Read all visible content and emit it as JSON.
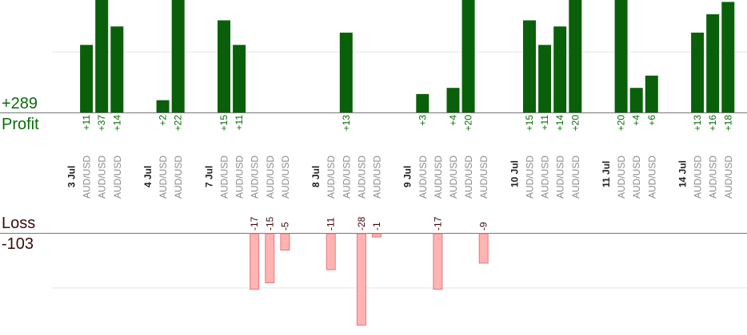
{
  "summary": {
    "profit_total": "+289",
    "profit_label": "Profit",
    "loss_label": "Loss",
    "loss_total": "-103"
  },
  "colors": {
    "profit_bar": "#0a600a",
    "profit_text": "#0a6b0a",
    "loss_bar": "#ffb3b3",
    "loss_border": "#e07a7a",
    "loss_text": "#3a0a0a",
    "category_text": "#8a8a8a",
    "date_text": "#222222",
    "axis": "#777777",
    "grid": "#e6e6e6"
  },
  "chart_data": {
    "type": "bar",
    "title": "",
    "grid": true,
    "profit_ylim": [
      0,
      30
    ],
    "loss_ylim": [
      0,
      28
    ],
    "columns": [
      {
        "label": "3 Jul",
        "date": true
      },
      {
        "label": "AUD/USD",
        "profit": 11
      },
      {
        "label": "AUD/USD",
        "profit": 37
      },
      {
        "label": "AUD/USD",
        "profit": 14
      },
      {
        "label": "",
        "spacer": true
      },
      {
        "label": "4 Jul",
        "date": true
      },
      {
        "label": "AUD/USD",
        "profit": 2
      },
      {
        "label": "AUD/USD",
        "profit": 22
      },
      {
        "label": "",
        "spacer": true
      },
      {
        "label": "7 Jul",
        "date": true
      },
      {
        "label": "AUD/USD",
        "profit": 15
      },
      {
        "label": "AUD/USD",
        "profit": 11
      },
      {
        "label": "AUD/USD",
        "loss": 17
      },
      {
        "label": "AUD/USD",
        "loss": 15
      },
      {
        "label": "AUD/USD",
        "loss": 5
      },
      {
        "label": "",
        "spacer": true
      },
      {
        "label": "8 Jul",
        "date": true
      },
      {
        "label": "AUD/USD",
        "loss": 11
      },
      {
        "label": "AUD/USD",
        "profit": 13
      },
      {
        "label": "AUD/USD",
        "loss": 28
      },
      {
        "label": "AUD/USD",
        "loss": 1
      },
      {
        "label": "",
        "spacer": true
      },
      {
        "label": "9 Jul",
        "date": true
      },
      {
        "label": "AUD/USD",
        "profit": 3
      },
      {
        "label": "AUD/USD",
        "loss": 17
      },
      {
        "label": "AUD/USD",
        "profit": 4
      },
      {
        "label": "AUD/USD",
        "profit": 20
      },
      {
        "label": "AUD/USD",
        "loss": 9
      },
      {
        "label": "",
        "spacer": true
      },
      {
        "label": "10 Jul",
        "date": true
      },
      {
        "label": "AUD/USD",
        "profit": 15
      },
      {
        "label": "AUD/USD",
        "profit": 11
      },
      {
        "label": "AUD/USD",
        "profit": 14
      },
      {
        "label": "AUD/USD",
        "profit": 20
      },
      {
        "label": "",
        "spacer": true
      },
      {
        "label": "11 Jul",
        "date": true
      },
      {
        "label": "AUD/USD",
        "profit": 20
      },
      {
        "label": "AUD/USD",
        "profit": 4
      },
      {
        "label": "AUD/USD",
        "profit": 6
      },
      {
        "label": "",
        "spacer": true
      },
      {
        "label": "14 Jul",
        "date": true
      },
      {
        "label": "AUD/USD",
        "profit": 13
      },
      {
        "label": "AUD/USD",
        "profit": 16
      },
      {
        "label": "AUD/USD",
        "profit": 18
      }
    ]
  }
}
